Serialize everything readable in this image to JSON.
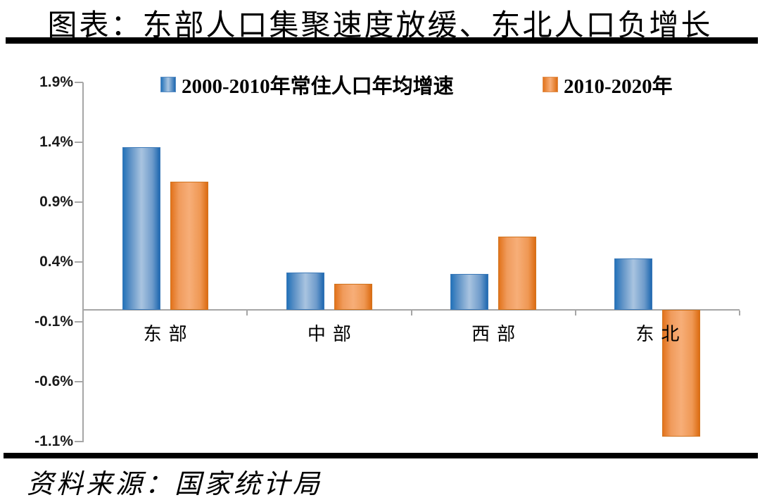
{
  "title": "图表：东部人口集聚速度放缓、东北人口负增长",
  "source": "资料来源：国家统计局",
  "colors": {
    "series1_blue": "#2E75B6",
    "series2_orange": "#ED7D31",
    "axis_gray": "#A6A6A6",
    "rule_black": "#000000"
  },
  "chart_data": {
    "type": "bar",
    "title": "图表：东部人口集聚速度放缓、东北人口负增长",
    "categories": [
      "东部",
      "中部",
      "西部",
      "东北"
    ],
    "series": [
      {
        "name": "2000-2010年常住人口年均增速",
        "color": "#2E75B6",
        "values": [
          1.36,
          0.31,
          0.3,
          0.43
        ]
      },
      {
        "name": "2010-2020年",
        "color": "#ED7D31",
        "values": [
          1.07,
          0.22,
          0.61,
          -1.06
        ]
      }
    ],
    "xlabel": "",
    "ylabel": "",
    "y_ticks": [
      "1.9%",
      "1.4%",
      "0.9%",
      "0.4%",
      "-0.1%",
      "-0.6%",
      "-1.1%"
    ],
    "ylim": [
      -1.1,
      1.9
    ],
    "tick_step": 0.5,
    "grid": false,
    "legend_position": "top",
    "source_note": "资料来源：国家统计局"
  }
}
